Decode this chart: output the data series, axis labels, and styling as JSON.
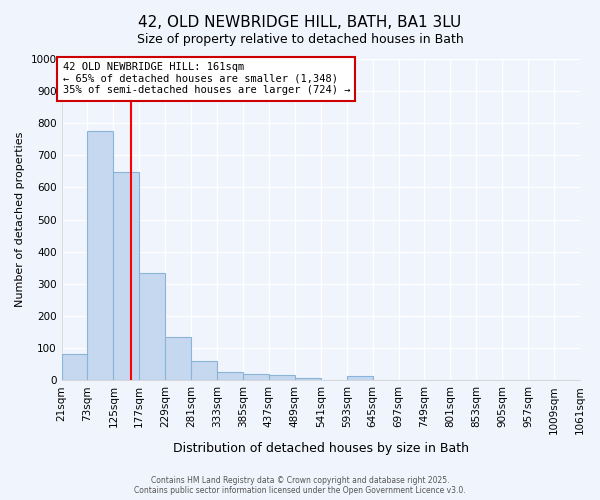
{
  "title_line1": "42, OLD NEWBRIDGE HILL, BATH, BA1 3LU",
  "title_line2": "Size of property relative to detached houses in Bath",
  "bar_values": [
    83,
    776,
    649,
    335,
    133,
    60,
    25,
    18,
    15,
    8,
    0,
    12,
    0,
    0,
    0,
    0,
    0,
    0,
    0,
    0
  ],
  "bin_edges": [
    21,
    73,
    125,
    177,
    229,
    281,
    333,
    385,
    437,
    489,
    541,
    593,
    645,
    697,
    749,
    801,
    853,
    905,
    957,
    1009,
    1061
  ],
  "x_tick_labels": [
    "21sqm",
    "73sqm",
    "125sqm",
    "177sqm",
    "229sqm",
    "281sqm",
    "333sqm",
    "385sqm",
    "437sqm",
    "489sqm",
    "541sqm",
    "593sqm",
    "645sqm",
    "697sqm",
    "749sqm",
    "801sqm",
    "853sqm",
    "905sqm",
    "957sqm",
    "1009sqm",
    "1061sqm"
  ],
  "ylabel": "Number of detached properties",
  "xlabel": "Distribution of detached houses by size in Bath",
  "ylim": [
    0,
    1000
  ],
  "yticks": [
    0,
    100,
    200,
    300,
    400,
    500,
    600,
    700,
    800,
    900,
    1000
  ],
  "bar_color": "#c5d8f0",
  "bar_edge_color": "#8ab4d8",
  "red_line_x": 161,
  "annotation_title": "42 OLD NEWBRIDGE HILL: 161sqm",
  "annotation_line1": "← 65% of detached houses are smaller (1,348)",
  "annotation_line2": "35% of semi-detached houses are larger (724) →",
  "annotation_box_color": "#ffffff",
  "annotation_box_edge_color": "#cc0000",
  "footer_line1": "Contains HM Land Registry data © Crown copyright and database right 2025.",
  "footer_line2": "Contains public sector information licensed under the Open Government Licence v3.0.",
  "background_color": "#f0f4fc",
  "plot_bg_color": "#f0f4fc",
  "grid_color": "#ffffff",
  "title_fontsize": 11,
  "subtitle_fontsize": 9,
  "annotation_fontsize": 7.5,
  "ylabel_fontsize": 8,
  "xlabel_fontsize": 9,
  "tick_fontsize": 7.5,
  "footer_fontsize": 5.5
}
